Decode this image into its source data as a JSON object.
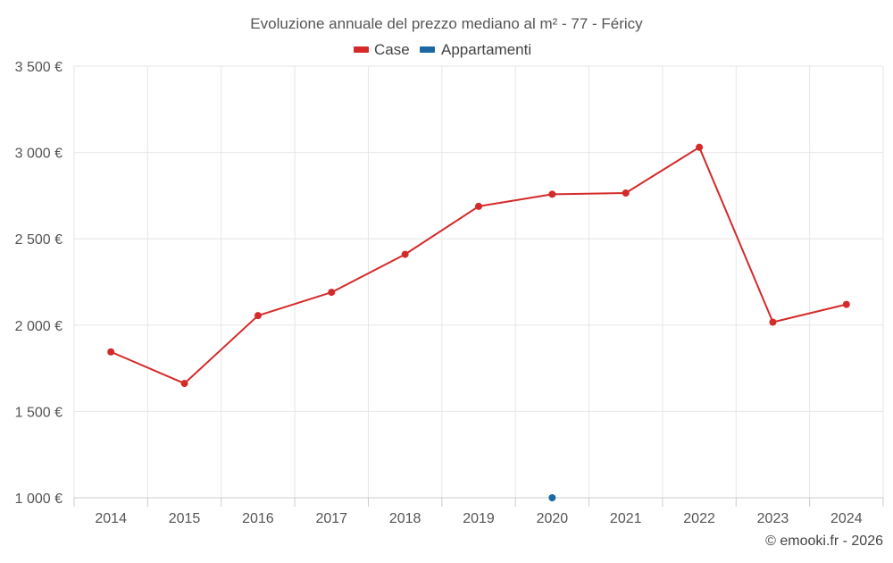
{
  "chart_data": {
    "type": "line",
    "title": "Evoluzione annuale del prezzo mediano al m² - 77 - Féricy",
    "categories": [
      "2014",
      "2015",
      "2016",
      "2017",
      "2018",
      "2019",
      "2020",
      "2021",
      "2022",
      "2023",
      "2024"
    ],
    "series": [
      {
        "name": "Case",
        "color": "#d42a2a",
        "values": [
          1845,
          1662,
          2055,
          2190,
          2410,
          2688,
          2758,
          2765,
          3030,
          2017,
          2120
        ]
      },
      {
        "name": "Appartamenti",
        "color": "#1a69a5",
        "values": [
          null,
          null,
          null,
          null,
          null,
          null,
          1000,
          null,
          null,
          null,
          null
        ]
      }
    ],
    "ylim": [
      1000,
      3500
    ],
    "yticks": [
      1000,
      1500,
      2000,
      2500,
      3000,
      3500
    ],
    "ytick_labels": [
      "1 000 €",
      "1 500 €",
      "2 000 €",
      "2 500 €",
      "3 000 €",
      "3 500 €"
    ],
    "xlabel": "",
    "ylabel": "",
    "grid": true,
    "legend_position": "top-center"
  },
  "credit": "© emooki.fr - 2026"
}
